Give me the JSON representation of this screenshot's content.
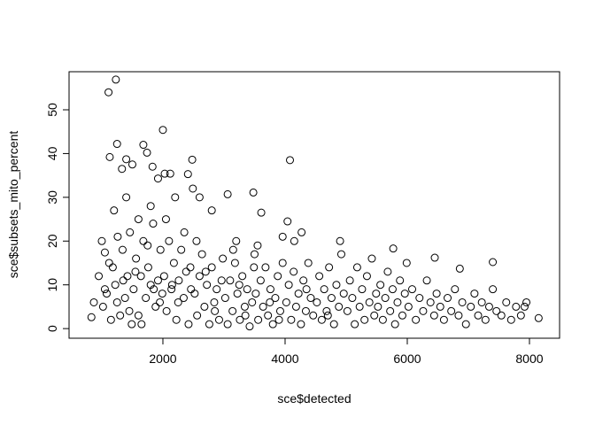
{
  "chart_data": {
    "type": "scatter",
    "x_label": "sce$detected",
    "y_label": "sce$subsets_mito_percent",
    "xlim": [
      464,
      8493
    ],
    "ylim": [
      -2.2,
      58.7
    ],
    "xticks": [
      2000,
      4000,
      6000,
      8000
    ],
    "yticks": [
      0,
      10,
      20,
      30,
      40,
      50
    ],
    "color": "#000000",
    "x": [
      1230,
      1110,
      1250,
      1680,
      2000,
      1130,
      1400,
      2480,
      4080,
      1740,
      1500,
      1330,
      1830,
      2030,
      2120,
      2410,
      1920,
      2490,
      3060,
      3480,
      3610,
      4040,
      4270,
      3960,
      4900,
      5770,
      7400,
      6860,
      6450,
      7950,
      8150,
      830,
      870,
      950,
      1000,
      1050,
      1200,
      1400,
      1600,
      1800,
      2200,
      2600,
      2800,
      3200,
      3500,
      1020,
      1080,
      1150,
      1180,
      1220,
      1260,
      1300,
      1340,
      1380,
      1420,
      1460,
      1490,
      1050,
      1120,
      1250,
      1350,
      1450,
      1520,
      1560,
      1600,
      1640,
      1680,
      1720,
      1760,
      1800,
      1840,
      1880,
      1920,
      1960,
      1990,
      1550,
      1650,
      1750,
      1850,
      1950,
      2020,
      2060,
      2100,
      2140,
      2180,
      2220,
      2260,
      2300,
      2340,
      2380,
      2420,
      2460,
      2050,
      2150,
      2250,
      2350,
      2450,
      2520,
      2560,
      2600,
      2640,
      2680,
      2720,
      2760,
      2800,
      2840,
      2880,
      2920,
      2960,
      2550,
      2700,
      2850,
      2980,
      3020,
      3060,
      3100,
      3140,
      3180,
      3220,
      3260,
      3300,
      3340,
      3380,
      3420,
      3460,
      3490,
      3150,
      3350,
      3250,
      3520,
      3560,
      3600,
      3640,
      3680,
      3720,
      3760,
      3800,
      3840,
      3880,
      3920,
      3960,
      3550,
      3750,
      3900,
      4020,
      4060,
      4100,
      4140,
      4180,
      4220,
      4260,
      4300,
      4340,
      4380,
      4420,
      4460,
      4150,
      4350,
      4520,
      4560,
      4600,
      4640,
      4680,
      4720,
      4760,
      4800,
      4840,
      4880,
      4920,
      4960,
      4700,
      5020,
      5060,
      5100,
      5140,
      5180,
      5220,
      5260,
      5300,
      5340,
      5380,
      5420,
      5460,
      5490,
      5520,
      5560,
      5600,
      5640,
      5680,
      5720,
      5760,
      5800,
      5840,
      5880,
      5920,
      5960,
      5990,
      6020,
      6080,
      6140,
      6200,
      6260,
      6320,
      6380,
      6440,
      6480,
      6540,
      6600,
      6660,
      6720,
      6780,
      6840,
      6900,
      6960,
      7040,
      7100,
      7160,
      7220,
      7280,
      7340,
      7400,
      7460,
      7540,
      7620,
      7700,
      7780,
      7860,
      7920
    ],
    "y": [
      56.9,
      54,
      42.2,
      42,
      45.4,
      39.2,
      38.7,
      38.6,
      38.5,
      40.2,
      37.5,
      36.5,
      37,
      35.4,
      35.4,
      35.3,
      34.3,
      32,
      30.7,
      31.1,
      26.5,
      24.5,
      22,
      21,
      20,
      18.3,
      15.2,
      13.7,
      16.2,
      6,
      2.4,
      2.6,
      6,
      12,
      20,
      17.4,
      27,
      30,
      25,
      28,
      30,
      30,
      27,
      20,
      17,
      5,
      8,
      2,
      14,
      10,
      21,
      3,
      18,
      7,
      12,
      22,
      1,
      9,
      15,
      6,
      11,
      4,
      9,
      16,
      3,
      12,
      20,
      7,
      14,
      10,
      24,
      5,
      11,
      18,
      8,
      13,
      1,
      19,
      9,
      6,
      12,
      4,
      20,
      9,
      15,
      2,
      11,
      18,
      7,
      13,
      1,
      9,
      25,
      10,
      6,
      22,
      14,
      8,
      3,
      12,
      17,
      5,
      10,
      1,
      14,
      6,
      9,
      2,
      11,
      20,
      13,
      4,
      16,
      7,
      1,
      11,
      4,
      15,
      8,
      2,
      12,
      5,
      9,
      0.5,
      6,
      14,
      18,
      3,
      10,
      8,
      2,
      11,
      5,
      14,
      3,
      9,
      1,
      7,
      12,
      4,
      15,
      19,
      6,
      2,
      6,
      10,
      2,
      13,
      5,
      8,
      1,
      11,
      4,
      15,
      7,
      3,
      20,
      9,
      6,
      12,
      2,
      9,
      4,
      14,
      7,
      1,
      10,
      5,
      17,
      8,
      3,
      4,
      11,
      7,
      1,
      14,
      5,
      9,
      2,
      12,
      6,
      16,
      3,
      8,
      5,
      10,
      2,
      7,
      13,
      4,
      9,
      1,
      6,
      11,
      3,
      8,
      15,
      5,
      9,
      2,
      7,
      4,
      11,
      6,
      3,
      8,
      5,
      2,
      7,
      4,
      9,
      3,
      6,
      1,
      5,
      8,
      3,
      6,
      2,
      5,
      9,
      4,
      3,
      6,
      2,
      5,
      3,
      5
    ]
  }
}
